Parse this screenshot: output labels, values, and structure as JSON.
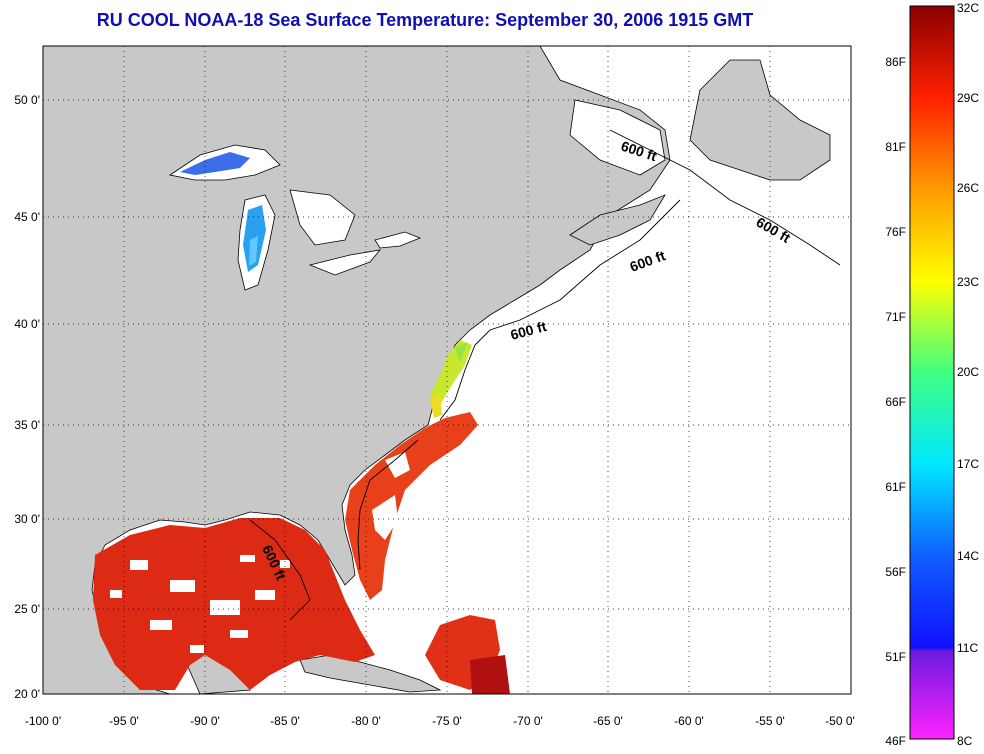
{
  "title": "RU COOL  NOAA-18  Sea Surface Temperature:  September 30, 2006 1915 GMT",
  "lon_ticks": [
    "-100 0'",
    "-95 0'",
    "-90 0'",
    "-85 0'",
    "-80 0'",
    "-75 0'",
    "-70 0'",
    "-65 0'",
    "-60 0'",
    "-55 0'",
    "-50 0'"
  ],
  "lat_ticks": [
    "50 0'",
    "45 0'",
    "40 0'",
    "35 0'",
    "30 0'",
    "25 0'",
    "20 0'"
  ],
  "isobath_labels": [
    "600 ft",
    "600 ft",
    "600 ft",
    "600 ft",
    "600 ft"
  ],
  "colorbar": {
    "left_labels": [
      "86F",
      "81F",
      "76F",
      "71F",
      "66F",
      "61F",
      "56F",
      "51F",
      "46F"
    ],
    "right_labels": [
      "32C",
      "29C",
      "26C",
      "23C",
      "20C",
      "17C",
      "14C",
      "11C",
      "8C"
    ]
  },
  "colors": {
    "land": "#c8c8c8",
    "ocean_nodata": "#ffffff",
    "title": "#1010b0",
    "sst_warm": "#dd2a14",
    "sst_hot": "#b01010"
  }
}
